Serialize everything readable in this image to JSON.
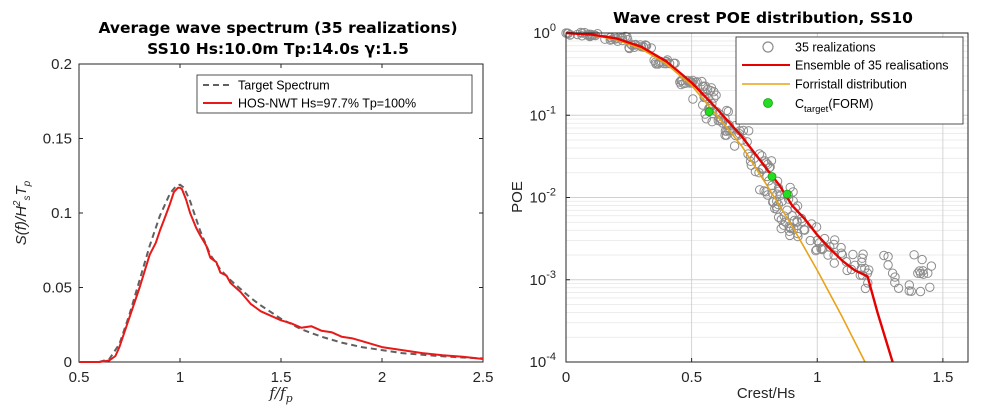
{
  "chart_data": [
    {
      "type": "line",
      "title": "Average wave spectrum (35 realizations)",
      "subtitle": "SS10 Hs:10.0m Tp:14.0s γ:1.5",
      "xlabel": "f/f_p",
      "ylabel": "S(f)/H_s^2 T_p",
      "xlim": [
        0.5,
        2.5
      ],
      "ylim": [
        0,
        0.2
      ],
      "xticks": [
        "0.5",
        "1",
        "1.5",
        "2",
        "2.5"
      ],
      "yticks": [
        "0",
        "0.05",
        "0.1",
        "0.15",
        "0.2"
      ],
      "grid": false,
      "legend_position": "top-right",
      "series": [
        {
          "name": "Target Spectrum",
          "color": "#606060",
          "style": "dashed",
          "x": [
            0.5,
            0.6,
            0.65,
            0.7,
            0.75,
            0.8,
            0.85,
            0.9,
            0.95,
            0.98,
            1.0,
            1.02,
            1.05,
            1.1,
            1.15,
            1.2,
            1.25,
            1.3,
            1.35,
            1.4,
            1.5,
            1.6,
            1.7,
            1.8,
            1.9,
            2.0,
            2.1,
            2.2,
            2.3,
            2.4,
            2.5
          ],
          "y": [
            0,
            0,
            0.002,
            0.012,
            0.032,
            0.055,
            0.078,
            0.098,
            0.113,
            0.118,
            0.119,
            0.117,
            0.108,
            0.088,
            0.072,
            0.062,
            0.055,
            0.049,
            0.043,
            0.038,
            0.029,
            0.022,
            0.017,
            0.013,
            0.01,
            0.008,
            0.006,
            0.0048,
            0.0038,
            0.003,
            0.0024
          ]
        },
        {
          "name": "HOS-NWT Hs=97.7% Tp=100%",
          "color": "#e81919",
          "style": "solid",
          "x": [
            0.5,
            0.6,
            0.65,
            0.68,
            0.7,
            0.75,
            0.8,
            0.85,
            0.88,
            0.9,
            0.92,
            0.95,
            0.97,
            0.99,
            1.0,
            1.01,
            1.03,
            1.05,
            1.08,
            1.1,
            1.13,
            1.15,
            1.18,
            1.2,
            1.23,
            1.25,
            1.3,
            1.35,
            1.4,
            1.45,
            1.5,
            1.55,
            1.6,
            1.65,
            1.7,
            1.75,
            1.8,
            1.85,
            1.9,
            1.95,
            2.0,
            2.1,
            2.2,
            2.3,
            2.4,
            2.5
          ],
          "y": [
            0,
            0,
            0.001,
            0.004,
            0.01,
            0.03,
            0.05,
            0.072,
            0.08,
            0.088,
            0.095,
            0.106,
            0.114,
            0.117,
            0.117,
            0.116,
            0.109,
            0.1,
            0.09,
            0.085,
            0.078,
            0.07,
            0.067,
            0.06,
            0.058,
            0.053,
            0.047,
            0.039,
            0.034,
            0.031,
            0.028,
            0.026,
            0.023,
            0.024,
            0.021,
            0.02,
            0.017,
            0.016,
            0.014,
            0.012,
            0.01,
            0.008,
            0.006,
            0.0045,
            0.0035,
            0.002
          ]
        }
      ]
    },
    {
      "type": "scatter",
      "title": "Wave crest POE distribution, SS10",
      "xlabel": "Crest/Hs",
      "ylabel": "POE",
      "yscale": "log",
      "xlim": [
        0,
        1.6
      ],
      "ylim": [
        0.0001,
        1
      ],
      "xticks": [
        "0",
        "0.5",
        "1",
        "1.5"
      ],
      "yticks": [
        "10^0",
        "10^-1",
        "10^-2",
        "10^-3",
        "10^-4"
      ],
      "grid": true,
      "legend_position": "top-right",
      "series": [
        {
          "name": "35 realizations",
          "marker": "open-circle",
          "color": "#8c8c8c",
          "x": [
            0.0,
            0.1,
            0.2,
            0.3,
            0.4,
            0.5,
            0.55,
            0.6,
            0.65,
            0.7,
            0.75,
            0.78,
            0.8,
            0.82,
            0.84,
            0.86,
            0.88,
            0.9,
            0.92,
            0.95,
            1.0,
            1.05,
            1.1,
            1.15,
            1.2,
            1.3,
            1.4,
            1.44
          ],
          "y": [
            1.0,
            0.96,
            0.85,
            0.68,
            0.45,
            0.25,
            0.17,
            0.11,
            0.075,
            0.05,
            0.03,
            0.022,
            0.018,
            0.014,
            0.011,
            0.009,
            0.007,
            0.006,
            0.005,
            0.004,
            0.003,
            0.0025,
            0.002,
            0.0015,
            0.0012,
            0.0012,
            0.0012,
            0.0012
          ]
        },
        {
          "name": "Ensemble of 35 realisations",
          "color": "#e60000",
          "x": [
            0.0,
            0.1,
            0.2,
            0.3,
            0.4,
            0.5,
            0.6,
            0.7,
            0.8,
            0.85,
            0.9,
            0.95,
            1.0,
            1.05,
            1.1,
            1.15,
            1.2,
            1.24,
            1.3
          ],
          "y": [
            1.0,
            0.96,
            0.86,
            0.68,
            0.45,
            0.25,
            0.12,
            0.055,
            0.022,
            0.014,
            0.008,
            0.0055,
            0.0035,
            0.0024,
            0.0017,
            0.0013,
            0.0011,
            0.0004,
            0.0001
          ]
        },
        {
          "name": "Forristall distribution",
          "color": "#e8a317",
          "x": [
            0.0,
            0.1,
            0.2,
            0.3,
            0.4,
            0.5,
            0.6,
            0.7,
            0.8,
            0.9,
            1.0,
            1.1,
            1.19
          ],
          "y": [
            1.0,
            0.95,
            0.83,
            0.64,
            0.42,
            0.23,
            0.1,
            0.042,
            0.014,
            0.0045,
            0.0013,
            0.00035,
            0.0001
          ]
        },
        {
          "name": "C_target(FORM)",
          "marker": "filled-circle",
          "color": "#22dd22",
          "x": [
            0.57,
            0.82,
            0.88
          ],
          "y": [
            0.11,
            0.018,
            0.011
          ]
        }
      ]
    }
  ]
}
